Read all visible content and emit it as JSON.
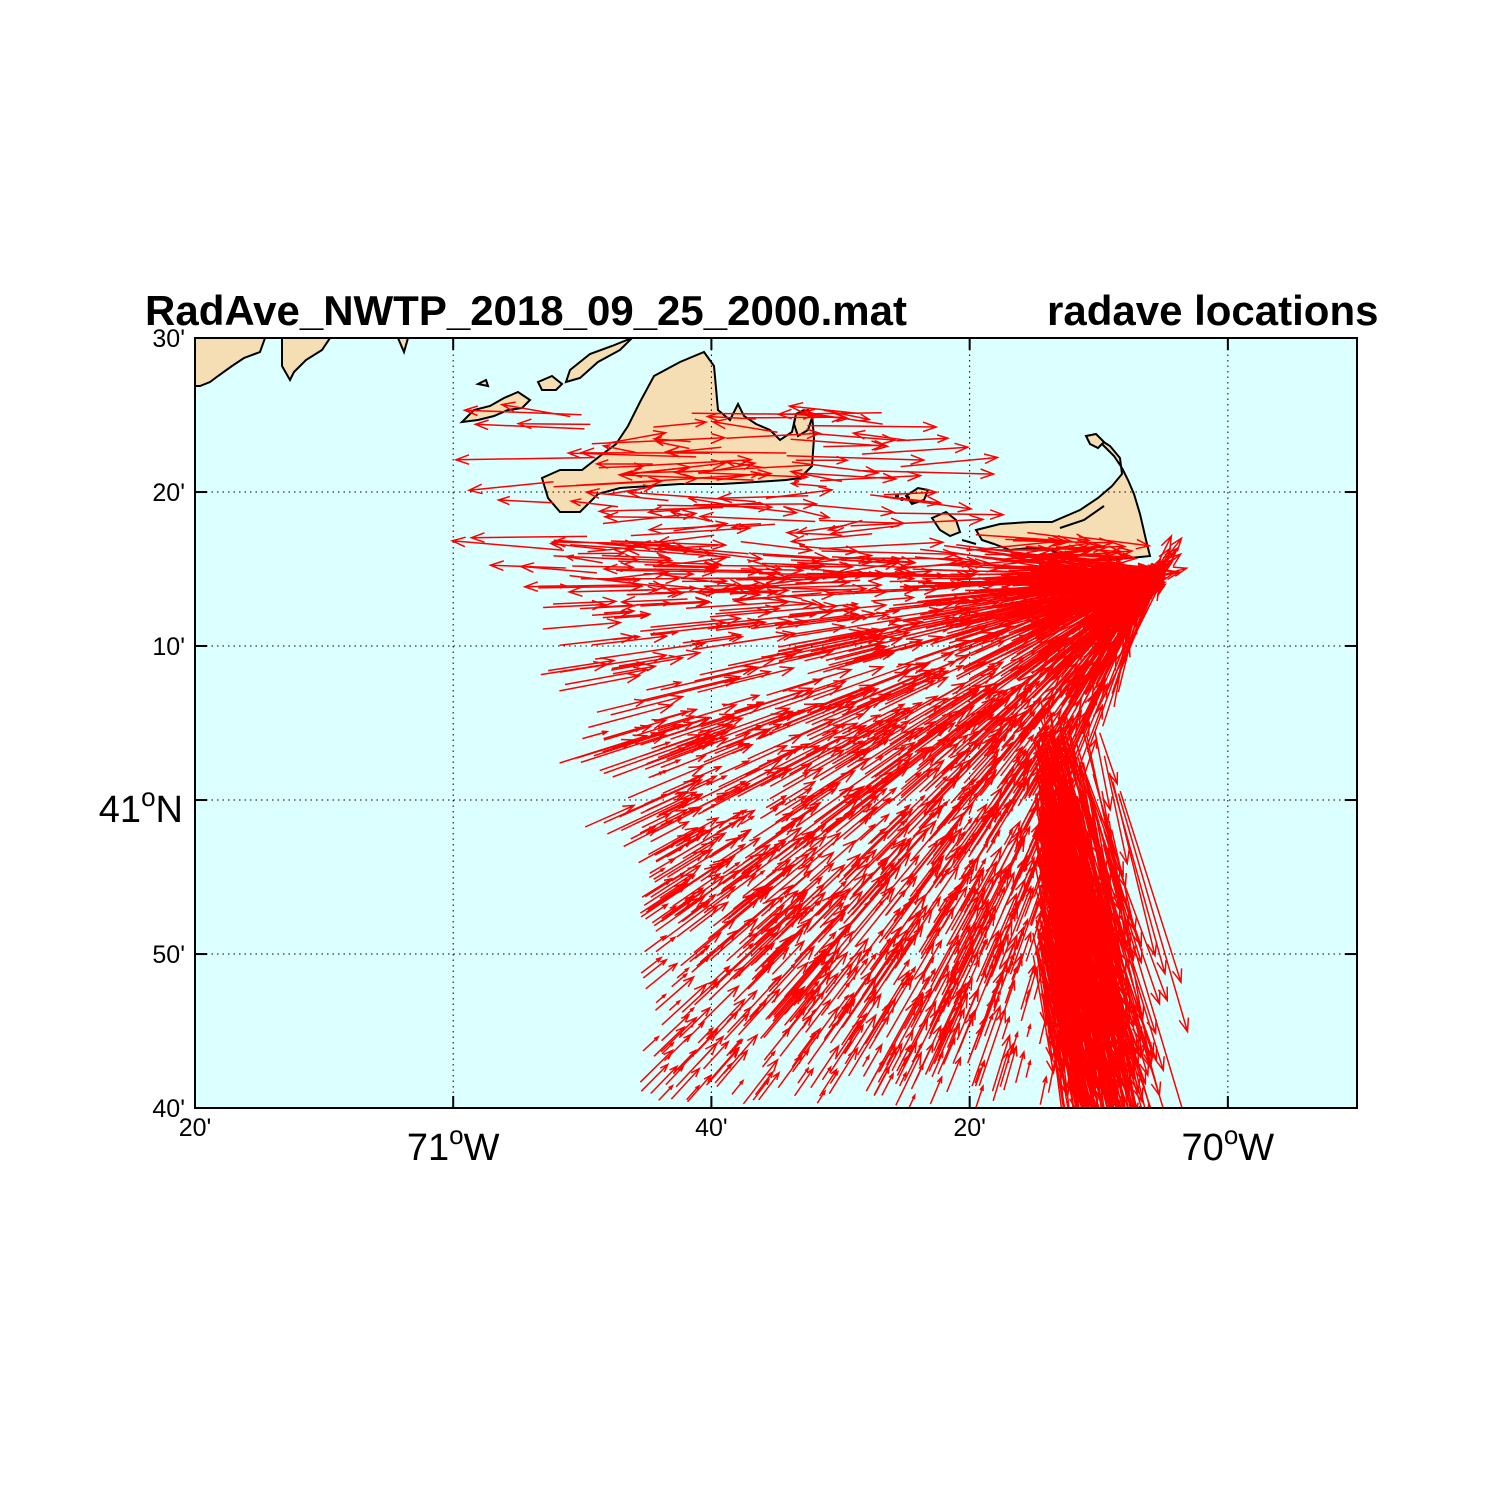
{
  "title_left": "RadAve_NWTP_2018_09_25_2000.mat",
  "title_right": "radave locations",
  "map": {
    "lon_range": [
      -71.3333,
      -69.8333
    ],
    "lat_range": [
      40.6667,
      41.5
    ],
    "colors": {
      "ocean": "#dcffff",
      "land": "#f5deb3",
      "arrow": "#ff0000",
      "coast": "#000000"
    }
  },
  "lon_ticks": [
    {
      "value": -71.3333,
      "label": "20'"
    },
    {
      "value": -71.0,
      "main": "71",
      "sup": "o",
      "suffix": "W"
    },
    {
      "value": -70.6667,
      "label": "40'"
    },
    {
      "value": -70.3333,
      "label": "20'"
    },
    {
      "value": -70.0,
      "main": "70",
      "sup": "o",
      "suffix": "W"
    }
  ],
  "lat_ticks": [
    {
      "value": 40.6667,
      "label": "40'"
    },
    {
      "value": 40.8333,
      "label": "50'"
    },
    {
      "value": 41.0,
      "main": "41",
      "sup": "o",
      "suffix": "N"
    },
    {
      "value": 41.1667,
      "label": "10'"
    },
    {
      "value": 41.3333,
      "label": "20'"
    },
    {
      "value": 41.5,
      "label": "30'"
    }
  ],
  "radar_site": {
    "lon": -70.1,
    "lat": 41.24
  }
}
